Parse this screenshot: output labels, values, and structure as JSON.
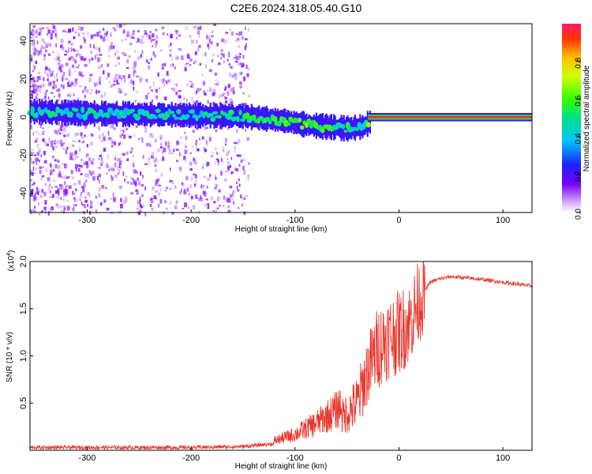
{
  "title": "C2E6.2024.318.05.40.G10",
  "colors": {
    "snr_line": "#e8382f",
    "spectrogram_track": "#ff1a1a",
    "spectrogram_halo": "#2040ff",
    "speckle": "#c9a8ff"
  },
  "chart_data": [
    {
      "type": "heatmap",
      "xlabel": "Height of straight line (km)",
      "ylabel": "Frequency (Hz)",
      "xlim": [
        -355,
        128
      ],
      "ylim": [
        -50,
        49
      ],
      "xticks": [
        "-300",
        "-200",
        "-100",
        "0",
        "100"
      ],
      "yticks": [
        "-40",
        "-20",
        "0",
        "20",
        "40"
      ],
      "colorbar": {
        "label": "Normalized spectral amplitude",
        "range": [
          0,
          1
        ],
        "ticks": [
          "0.0",
          "0.2",
          "0.4",
          "0.6",
          "0.8"
        ],
        "colormap": "rainbow"
      },
      "grid": false,
      "ridge": {
        "x": [
          -355,
          -300,
          -250,
          -200,
          -150,
          -110,
          -90,
          -70,
          -50,
          -35,
          -20,
          0,
          50,
          128
        ],
        "y": [
          3,
          2,
          1.5,
          1,
          0.5,
          -2,
          -4,
          -5,
          -6,
          -5,
          0.5,
          1,
          0.5,
          0.5
        ],
        "amplitude": [
          0.35,
          0.35,
          0.35,
          0.35,
          0.4,
          0.45,
          0.5,
          0.45,
          0.4,
          0.35,
          0.9,
          0.95,
          0.95,
          0.95
        ]
      }
    },
    {
      "type": "line",
      "xlabel": "Height of straight line (km)",
      "ylabel": "SNR (10 * v/v)",
      "scale_label": "(x10",
      "scale_exponent": "4",
      "xlim": [
        -355,
        128
      ],
      "ylim": [
        0,
        2.0
      ],
      "xticks": [
        "-300",
        "-200",
        "-100",
        "0",
        "100"
      ],
      "yticks": [
        "0.5",
        "1.0",
        "1.5",
        "2.0"
      ],
      "grid": false,
      "series": [
        {
          "x": [
            -355,
            -300,
            -250,
            -200,
            -150,
            -120,
            -100,
            -80,
            -60,
            -40,
            -30,
            -20,
            -10,
            0,
            10,
            20,
            30,
            40,
            50,
            60,
            80,
            100,
            128
          ],
          "y": [
            0.03,
            0.03,
            0.03,
            0.03,
            0.04,
            0.07,
            0.12,
            0.2,
            0.3,
            0.5,
            0.85,
            1.1,
            1.2,
            1.25,
            1.35,
            1.6,
            1.78,
            1.82,
            1.84,
            1.83,
            1.81,
            1.78,
            1.74
          ]
        }
      ]
    }
  ]
}
